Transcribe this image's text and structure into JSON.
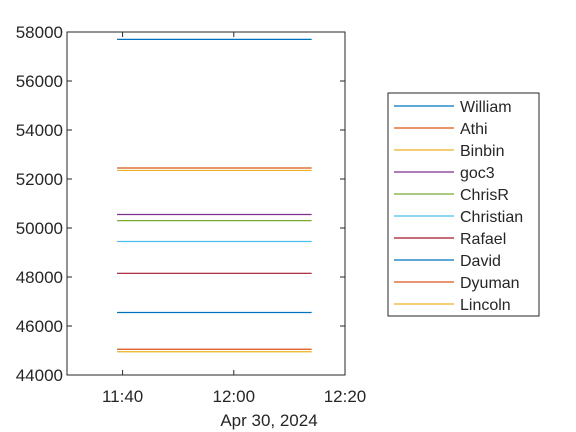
{
  "chart_data": {
    "type": "line",
    "title": "",
    "xlabel": "",
    "ylabel": "",
    "x_axis_secondary_label": "Apr 30, 2024",
    "x_ticks": [
      "11:40",
      "12:00",
      "12:20"
    ],
    "xlim": [
      "11:30",
      "12:20"
    ],
    "x": [
      "11:39",
      "12:14"
    ],
    "y_ticks": [
      "44000",
      "46000",
      "48000",
      "50000",
      "52000",
      "54000",
      "56000",
      "58000"
    ],
    "ylim": [
      44000,
      58000
    ],
    "grid": false,
    "legend_position": "outside-right",
    "series": [
      {
        "name": "William",
        "values": [
          57700,
          57700
        ],
        "color": "#0072BD"
      },
      {
        "name": "Athi",
        "values": [
          52450,
          52450
        ],
        "color": "#D95319"
      },
      {
        "name": "Binbin",
        "values": [
          52350,
          52350
        ],
        "color": "#EDB120"
      },
      {
        "name": "goc3",
        "values": [
          50550,
          50550
        ],
        "color": "#7E2F8E"
      },
      {
        "name": "ChrisR",
        "values": [
          50300,
          50300
        ],
        "color": "#77AC30"
      },
      {
        "name": "Christian",
        "values": [
          49450,
          49450
        ],
        "color": "#4DBEEE"
      },
      {
        "name": "Rafael",
        "values": [
          48150,
          48150
        ],
        "color": "#A2142F"
      },
      {
        "name": "David",
        "values": [
          46550,
          46550
        ],
        "color": "#0072BD"
      },
      {
        "name": "Dyuman",
        "values": [
          45050,
          45050
        ],
        "color": "#D95319"
      },
      {
        "name": "Lincoln",
        "values": [
          44950,
          44950
        ],
        "color": "#EDB120"
      }
    ]
  }
}
